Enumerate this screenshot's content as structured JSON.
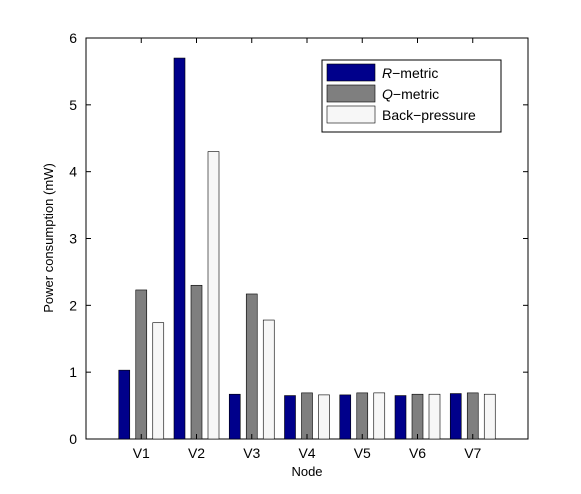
{
  "chart_data": {
    "type": "bar",
    "xlabel": "Node",
    "ylabel": "Power consumption (mW)",
    "categories": [
      "V1",
      "V2",
      "V3",
      "V4",
      "V5",
      "V6",
      "V7"
    ],
    "ylim": [
      0,
      6
    ],
    "yticks": [
      "0",
      "1",
      "2",
      "3",
      "4",
      "5",
      "6"
    ],
    "grid": false,
    "legend_position": "top-right",
    "series": [
      {
        "name_italic": "R",
        "name_rest": "−metric",
        "color": "#00008B",
        "values": [
          1.03,
          5.7,
          0.67,
          0.65,
          0.66,
          0.65,
          0.68
        ]
      },
      {
        "name_italic": "Q",
        "name_rest": "−metric",
        "color": "#7F7F7F",
        "values": [
          2.23,
          2.3,
          2.17,
          0.69,
          0.69,
          0.67,
          0.69
        ]
      },
      {
        "name_italic": "",
        "name_rest": "Back−pressure",
        "color": "#F7F7F7",
        "values": [
          1.74,
          4.3,
          1.78,
          0.66,
          0.69,
          0.67,
          0.67
        ]
      }
    ]
  }
}
